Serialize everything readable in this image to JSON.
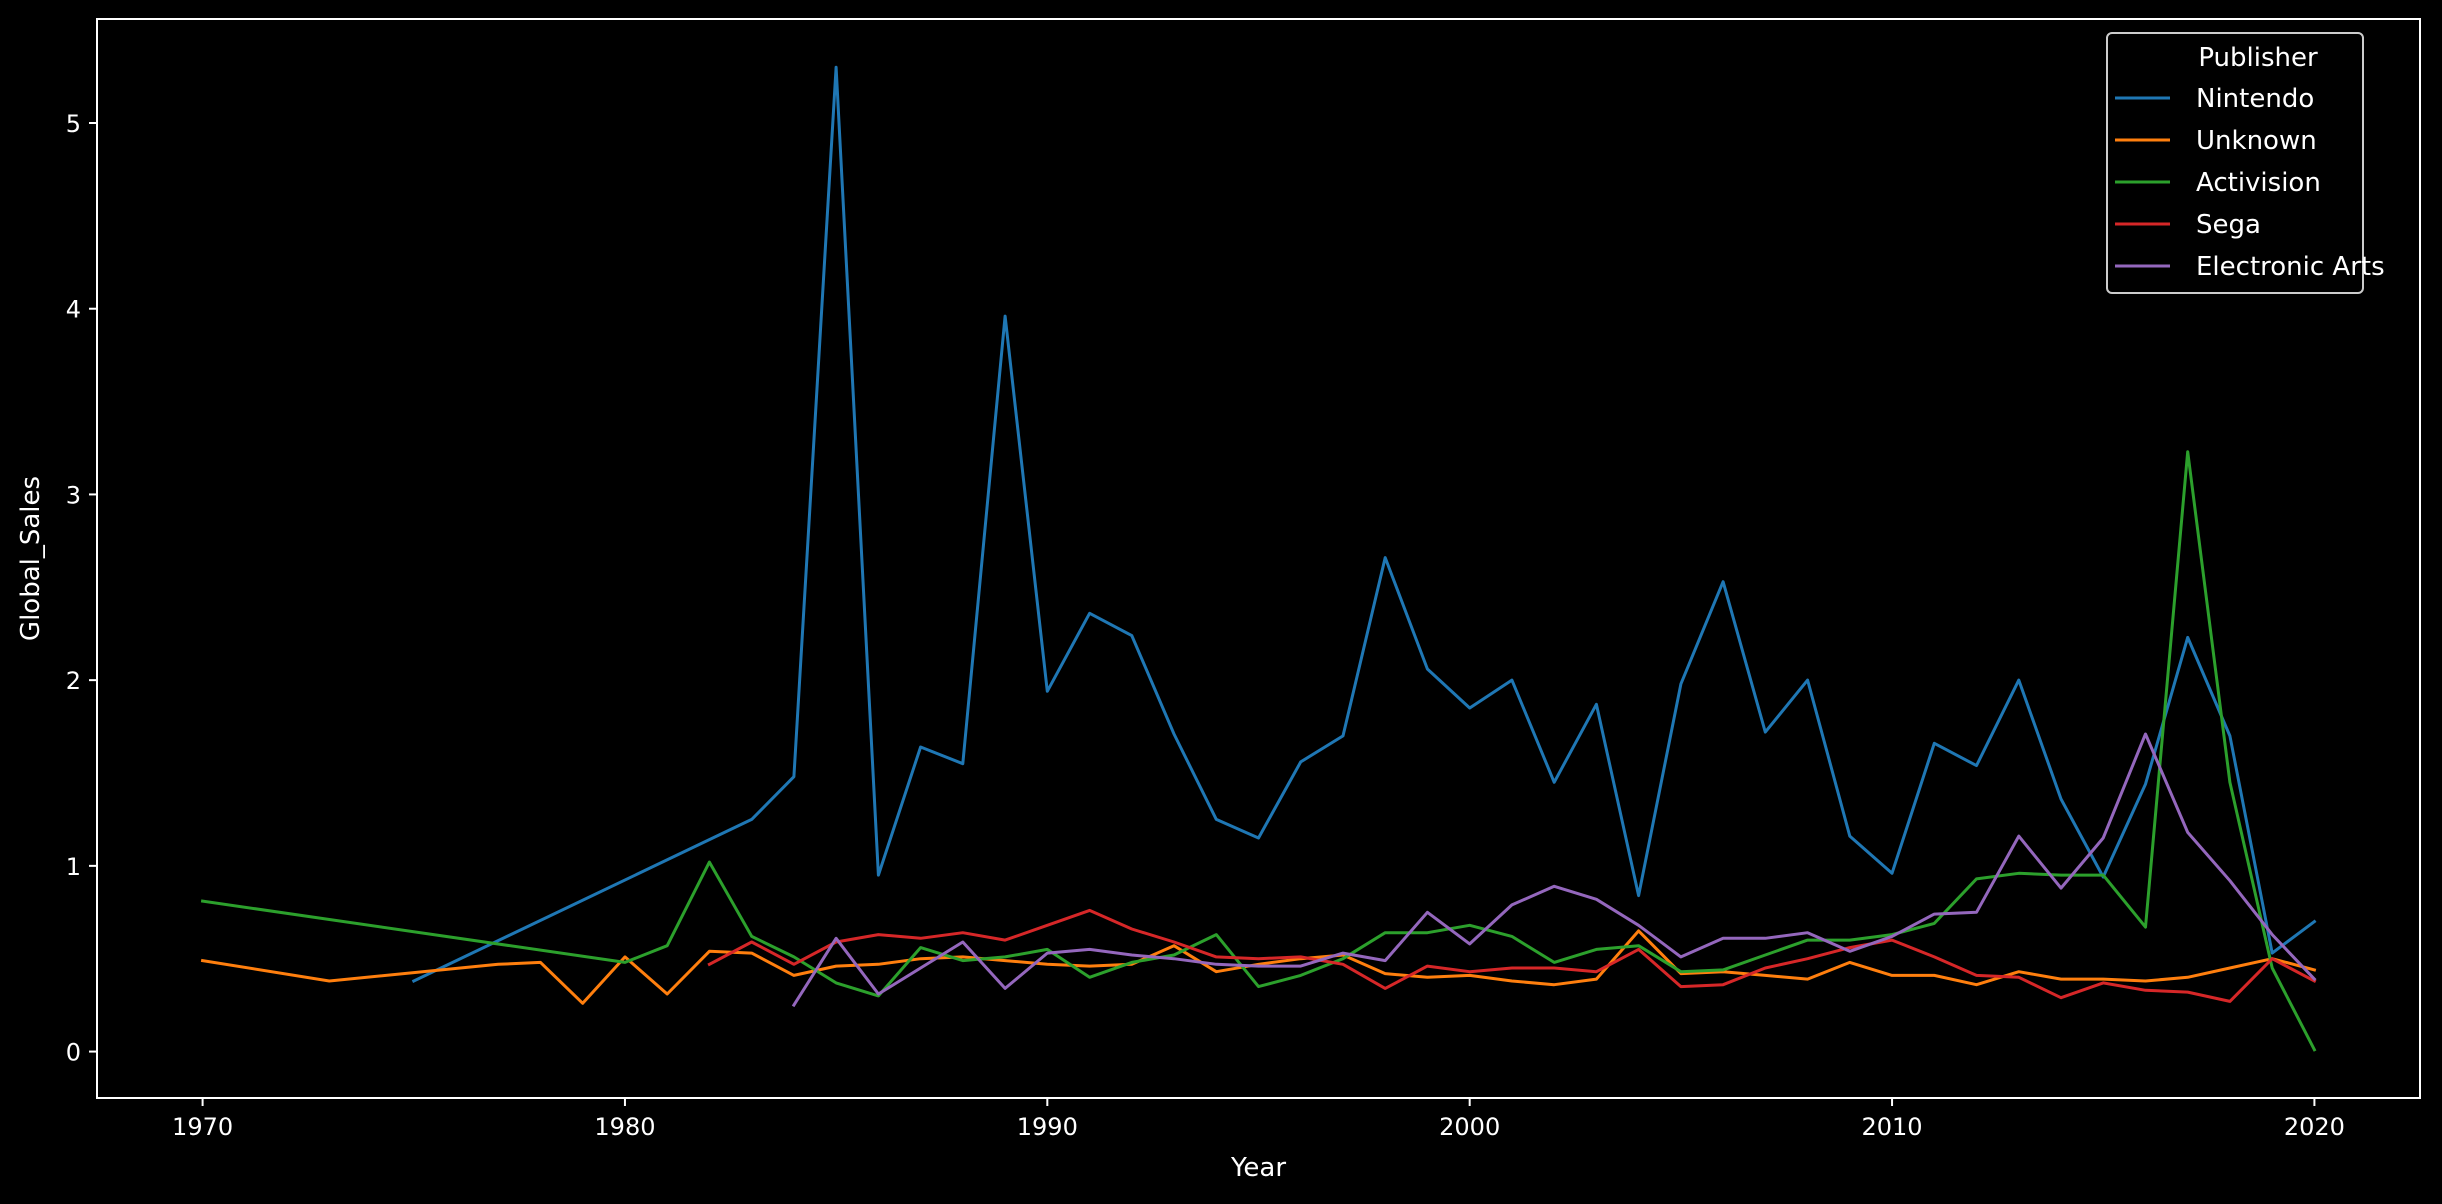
{
  "chart_data": {
    "type": "line",
    "title": "",
    "xlabel": "Year",
    "ylabel": "Global_Sales",
    "xlim": [
      1967.5,
      2022.5
    ],
    "ylim": [
      -0.25,
      5.56
    ],
    "xticks": [
      1970,
      1980,
      1990,
      2000,
      2010,
      2020
    ],
    "yticks": [
      0,
      1,
      2,
      3,
      4,
      5
    ],
    "grid": false,
    "legend": {
      "title": "Publisher",
      "placement": "top-right"
    },
    "background": "#000000",
    "foreground": "#ffffff",
    "series": [
      {
        "name": "Nintendo",
        "color": "#1f77b4",
        "points": [
          [
            1975,
            0.38
          ],
          [
            1983,
            1.25
          ],
          [
            1984,
            1.48
          ],
          [
            1985,
            5.3
          ],
          [
            1986,
            0.95
          ],
          [
            1987,
            1.64
          ],
          [
            1988,
            1.55
          ],
          [
            1989,
            3.96
          ],
          [
            1990,
            1.94
          ],
          [
            1991,
            2.36
          ],
          [
            1992,
            2.24
          ],
          [
            1993,
            1.71
          ],
          [
            1994,
            1.25
          ],
          [
            1995,
            1.15
          ],
          [
            1996,
            1.56
          ],
          [
            1997,
            1.7
          ],
          [
            1998,
            2.66
          ],
          [
            1999,
            2.06
          ],
          [
            2000,
            1.85
          ],
          [
            2001,
            2.0
          ],
          [
            2002,
            1.45
          ],
          [
            2003,
            1.87
          ],
          [
            2004,
            0.84
          ],
          [
            2005,
            1.98
          ],
          [
            2006,
            2.53
          ],
          [
            2007,
            1.72
          ],
          [
            2008,
            2.0
          ],
          [
            2009,
            1.16
          ],
          [
            2010,
            0.96
          ],
          [
            2011,
            1.66
          ],
          [
            2012,
            1.54
          ],
          [
            2013,
            2.0
          ],
          [
            2014,
            1.36
          ],
          [
            2015,
            0.94
          ],
          [
            2016,
            1.44
          ],
          [
            2017,
            2.23
          ],
          [
            2018,
            1.7
          ],
          [
            2019,
            0.53
          ],
          [
            2020,
            0.7
          ]
        ]
      },
      {
        "name": "Unknown",
        "color": "#ff7f0e",
        "points": [
          [
            1970,
            0.49
          ],
          [
            1973,
            0.38
          ],
          [
            1977,
            0.47
          ],
          [
            1978,
            0.48
          ],
          [
            1979,
            0.26
          ],
          [
            1980,
            0.51
          ],
          [
            1981,
            0.31
          ],
          [
            1982,
            0.54
          ],
          [
            1983,
            0.53
          ],
          [
            1984,
            0.41
          ],
          [
            1985,
            0.46
          ],
          [
            1986,
            0.47
          ],
          [
            1987,
            0.5
          ],
          [
            1988,
            0.51
          ],
          [
            1989,
            0.49
          ],
          [
            1990,
            0.47
          ],
          [
            1991,
            0.46
          ],
          [
            1992,
            0.47
          ],
          [
            1993,
            0.57
          ],
          [
            1994,
            0.43
          ],
          [
            1995,
            0.47
          ],
          [
            1996,
            0.5
          ],
          [
            1997,
            0.52
          ],
          [
            1998,
            0.42
          ],
          [
            1999,
            0.4
          ],
          [
            2000,
            0.41
          ],
          [
            2001,
            0.38
          ],
          [
            2002,
            0.36
          ],
          [
            2003,
            0.39
          ],
          [
            2004,
            0.65
          ],
          [
            2005,
            0.42
          ],
          [
            2006,
            0.43
          ],
          [
            2007,
            0.41
          ],
          [
            2008,
            0.39
          ],
          [
            2009,
            0.48
          ],
          [
            2010,
            0.41
          ],
          [
            2011,
            0.41
          ],
          [
            2012,
            0.36
          ],
          [
            2013,
            0.43
          ],
          [
            2014,
            0.39
          ],
          [
            2015,
            0.39
          ],
          [
            2016,
            0.38
          ],
          [
            2017,
            0.4
          ],
          [
            2018,
            0.45
          ],
          [
            2019,
            0.5
          ],
          [
            2020,
            0.44
          ]
        ]
      },
      {
        "name": "Activision",
        "color": "#2ca02c",
        "points": [
          [
            1970,
            0.81
          ],
          [
            1980,
            0.48
          ],
          [
            1981,
            0.57
          ],
          [
            1982,
            1.02
          ],
          [
            1983,
            0.62
          ],
          [
            1984,
            0.51
          ],
          [
            1985,
            0.37
          ],
          [
            1986,
            0.3
          ],
          [
            1987,
            0.56
          ],
          [
            1988,
            0.49
          ],
          [
            1989,
            0.51
          ],
          [
            1990,
            0.55
          ],
          [
            1991,
            0.4
          ],
          [
            1992,
            0.48
          ],
          [
            1993,
            0.52
          ],
          [
            1994,
            0.63
          ],
          [
            1995,
            0.35
          ],
          [
            1996,
            0.41
          ],
          [
            1997,
            0.5
          ],
          [
            1998,
            0.64
          ],
          [
            1999,
            0.64
          ],
          [
            2000,
            0.68
          ],
          [
            2001,
            0.62
          ],
          [
            2002,
            0.48
          ],
          [
            2003,
            0.55
          ],
          [
            2004,
            0.57
          ],
          [
            2005,
            0.43
          ],
          [
            2006,
            0.44
          ],
          [
            2007,
            0.52
          ],
          [
            2008,
            0.6
          ],
          [
            2009,
            0.6
          ],
          [
            2010,
            0.63
          ],
          [
            2011,
            0.69
          ],
          [
            2012,
            0.93
          ],
          [
            2013,
            0.96
          ],
          [
            2014,
            0.95
          ],
          [
            2015,
            0.95
          ],
          [
            2016,
            0.67
          ],
          [
            2017,
            3.23
          ],
          [
            2018,
            1.45
          ],
          [
            2019,
            0.45
          ],
          [
            2020,
            0.01
          ]
        ]
      },
      {
        "name": "Sega",
        "color": "#d62728",
        "points": [
          [
            1982,
            0.47
          ],
          [
            1983,
            0.59
          ],
          [
            1984,
            0.47
          ],
          [
            1985,
            0.59
          ],
          [
            1986,
            0.63
          ],
          [
            1987,
            0.61
          ],
          [
            1988,
            0.64
          ],
          [
            1989,
            0.6
          ],
          [
            1990,
            0.68
          ],
          [
            1991,
            0.76
          ],
          [
            1992,
            0.66
          ],
          [
            1993,
            0.59
          ],
          [
            1994,
            0.51
          ],
          [
            1995,
            0.5
          ],
          [
            1996,
            0.51
          ],
          [
            1997,
            0.47
          ],
          [
            1998,
            0.34
          ],
          [
            1999,
            0.46
          ],
          [
            2000,
            0.43
          ],
          [
            2001,
            0.45
          ],
          [
            2002,
            0.45
          ],
          [
            2003,
            0.43
          ],
          [
            2004,
            0.55
          ],
          [
            2005,
            0.35
          ],
          [
            2006,
            0.36
          ],
          [
            2007,
            0.45
          ],
          [
            2008,
            0.5
          ],
          [
            2009,
            0.56
          ],
          [
            2010,
            0.6
          ],
          [
            2011,
            0.51
          ],
          [
            2012,
            0.41
          ],
          [
            2013,
            0.4
          ],
          [
            2014,
            0.29
          ],
          [
            2015,
            0.37
          ],
          [
            2016,
            0.33
          ],
          [
            2017,
            0.32
          ],
          [
            2018,
            0.27
          ],
          [
            2019,
            0.5
          ],
          [
            2020,
            0.38
          ]
        ]
      },
      {
        "name": "Electronic Arts",
        "color": "#9467bd",
        "points": [
          [
            1984,
            0.25
          ],
          [
            1985,
            0.61
          ],
          [
            1986,
            0.31
          ],
          [
            1987,
            0.45
          ],
          [
            1988,
            0.59
          ],
          [
            1989,
            0.34
          ],
          [
            1990,
            0.53
          ],
          [
            1991,
            0.55
          ],
          [
            1992,
            0.52
          ],
          [
            1993,
            0.5
          ],
          [
            1994,
            0.47
          ],
          [
            1995,
            0.46
          ],
          [
            1996,
            0.46
          ],
          [
            1997,
            0.53
          ],
          [
            1998,
            0.49
          ],
          [
            1999,
            0.75
          ],
          [
            2000,
            0.58
          ],
          [
            2001,
            0.79
          ],
          [
            2002,
            0.89
          ],
          [
            2003,
            0.82
          ],
          [
            2004,
            0.68
          ],
          [
            2005,
            0.51
          ],
          [
            2006,
            0.61
          ],
          [
            2007,
            0.61
          ],
          [
            2008,
            0.64
          ],
          [
            2009,
            0.54
          ],
          [
            2010,
            0.62
          ],
          [
            2011,
            0.74
          ],
          [
            2012,
            0.75
          ],
          [
            2013,
            1.16
          ],
          [
            2014,
            0.88
          ],
          [
            2015,
            1.15
          ],
          [
            2016,
            1.71
          ],
          [
            2017,
            1.18
          ],
          [
            2018,
            0.92
          ],
          [
            2019,
            0.63
          ],
          [
            2020,
            0.39
          ]
        ]
      }
    ]
  }
}
